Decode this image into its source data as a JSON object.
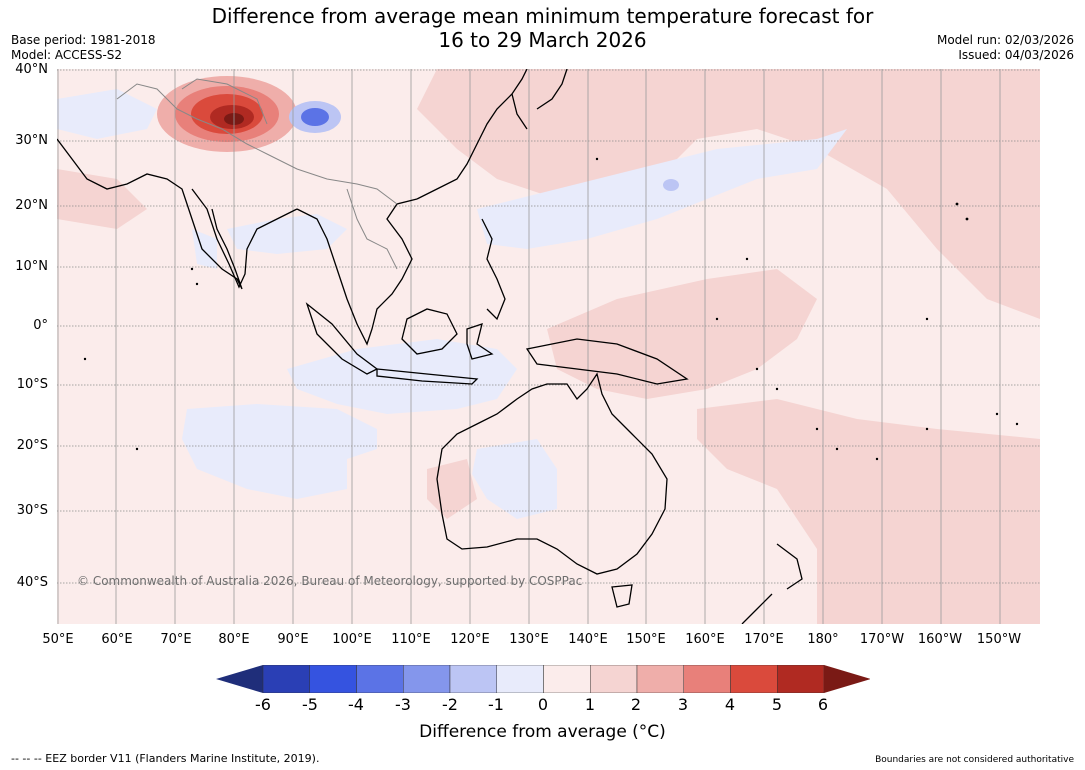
{
  "title_line1": "Difference from average mean minimum temperature forecast for",
  "title_line2": "16 to 29 March 2026",
  "base_period": "Base period: 1981-2018",
  "model": "Model: ACCESS-S2",
  "model_run": "Model run: 02/03/2026",
  "issued": "Issued: 04/03/2026",
  "lat_labels": [
    "40°N",
    "30°N",
    "20°N",
    "10°N",
    "0°",
    "10°S",
    "20°S",
    "30°S",
    "40°S"
  ],
  "lon_labels": [
    "50°E",
    "60°E",
    "70°E",
    "80°E",
    "90°E",
    "100°E",
    "110°E",
    "120°E",
    "130°E",
    "140°E",
    "150°E",
    "160°E",
    "170°E",
    "180°",
    "170°W",
    "160°W",
    "150°W"
  ],
  "copyright": "© Commonwealth of Australia 2026, Bureau of Meteorology, supported by COSPPac",
  "colorbar": {
    "ticks": [
      "-6",
      "-5",
      "-4",
      "-3",
      "-2",
      "-1",
      "0",
      "1",
      "2",
      "3",
      "4",
      "5",
      "6"
    ],
    "title": "Difference from average (°C)",
    "colors": [
      "#1f2e7a",
      "#2a3fb5",
      "#3553e0",
      "#5b73e6",
      "#8496ec",
      "#bcc5f4",
      "#e8ebfb",
      "#fbeceb",
      "#f5d4d2",
      "#efaeaa",
      "#e8807a",
      "#da4a3c",
      "#b02a22",
      "#7a1a15"
    ]
  },
  "eez_legend": "--  --  -- EEZ border V11 (Flanders Marine Institute, 2019).",
  "boundary_note": "Boundaries are not considered authoritative"
}
